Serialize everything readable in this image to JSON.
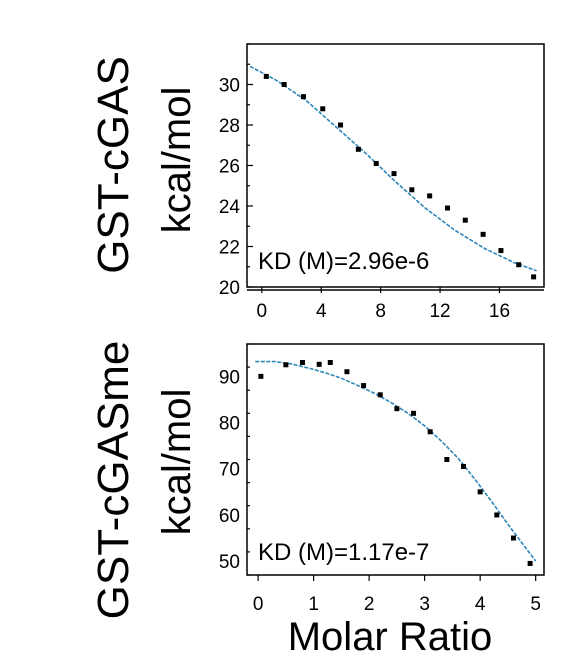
{
  "figure": {
    "shared_xlabel": "Molar Ratio"
  },
  "chart_data": [
    {
      "type": "scatter",
      "row_label": "GST-cGAS",
      "ylabel": "kcal/mol",
      "annotation": "KD (M)=2.96e-6",
      "xlim": [
        -1,
        19
      ],
      "ylim": [
        20,
        32
      ],
      "xticks": [
        0,
        4,
        8,
        12,
        16
      ],
      "yticks": [
        20,
        22,
        24,
        26,
        28,
        30
      ],
      "grid": false,
      "colors": {
        "points": "#000000",
        "fit": "#2e86b8"
      },
      "x": [
        0.3,
        1.5,
        2.8,
        4.1,
        5.3,
        6.5,
        7.7,
        8.9,
        10.1,
        11.3,
        12.5,
        13.7,
        14.9,
        16.1,
        17.3,
        18.3
      ],
      "y": [
        30.4,
        30.0,
        29.4,
        28.8,
        28.0,
        26.8,
        26.1,
        25.6,
        24.8,
        24.5,
        23.9,
        23.3,
        22.6,
        21.8,
        21.1,
        20.5
      ],
      "fit": {
        "x": [
          -0.8,
          1,
          3,
          5,
          7,
          9,
          11,
          13,
          15,
          17,
          18.5
        ],
        "y": [
          30.9,
          30.2,
          29.2,
          27.9,
          26.6,
          25.2,
          23.9,
          22.8,
          21.9,
          21.2,
          20.8
        ]
      }
    },
    {
      "type": "scatter",
      "row_label": "GST-cGASme",
      "ylabel": "kcal/mol",
      "annotation": "KD (M)=1.17e-7",
      "xlim": [
        -0.2,
        5.15
      ],
      "ylim": [
        47,
        97
      ],
      "xticks": [
        0,
        1,
        2,
        3,
        4,
        5
      ],
      "yticks": [
        50,
        60,
        70,
        80,
        90
      ],
      "grid": false,
      "colors": {
        "points": "#000000",
        "fit": "#2e86b8"
      },
      "x": [
        0.05,
        0.5,
        0.8,
        1.1,
        1.3,
        1.6,
        1.9,
        2.2,
        2.5,
        2.8,
        3.1,
        3.4,
        3.7,
        4.0,
        4.3,
        4.6,
        4.9
      ],
      "y": [
        90,
        92.5,
        93,
        92.6,
        93,
        91,
        88,
        86,
        83,
        82,
        78,
        72,
        70.5,
        65,
        60,
        55,
        49.5
      ],
      "fit": {
        "x": [
          -0.05,
          0.3,
          0.6,
          0.9,
          1.2,
          1.5,
          1.8,
          2.1,
          2.4,
          2.7,
          3.0,
          3.3,
          3.6,
          3.9,
          4.2,
          4.5,
          4.8,
          5.0
        ],
        "y": [
          93.2,
          93.2,
          92.7,
          91.8,
          90.8,
          89.6,
          88.0,
          86.3,
          84.3,
          82.0,
          79.3,
          76.0,
          72.3,
          67.8,
          63.0,
          58.0,
          53.2,
          50.0
        ]
      }
    }
  ]
}
